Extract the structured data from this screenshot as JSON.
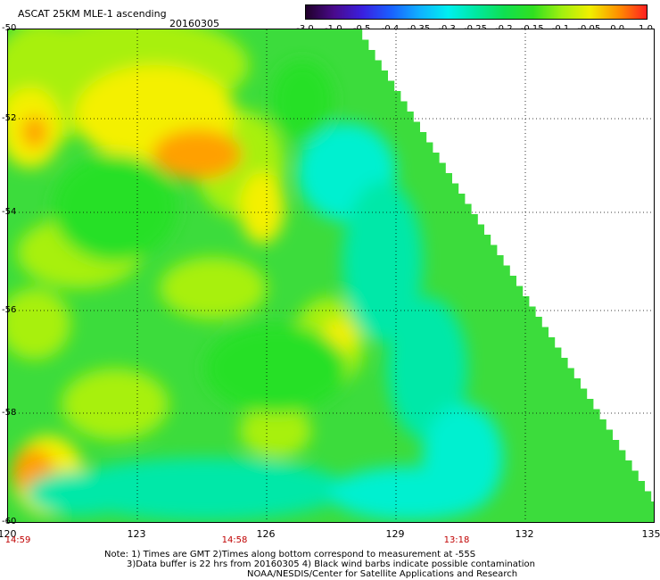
{
  "header": {
    "title": "ASCAT 25KM MLE-1 ascending",
    "date": "20160305"
  },
  "colorbar": {
    "labels": [
      "-3.0",
      "-1.0",
      "-0.5",
      "-0.4",
      "-0.35",
      "-0.3",
      "-0.25",
      "-0.2",
      "-0.15",
      "-0.1",
      "-0.05",
      "0.0",
      "1.0"
    ],
    "colors": [
      "#20002a",
      "#4a0a8c",
      "#3a20e0",
      "#1a60ff",
      "#10b0ff",
      "#00f0f0",
      "#00e8a0",
      "#10e050",
      "#30e020",
      "#a0f010",
      "#f0f000",
      "#ff9000",
      "#ff2020"
    ]
  },
  "map": {
    "lat_labels": [
      "-50",
      "-52",
      "-54",
      "-56",
      "-58",
      "-60"
    ],
    "lon_labels": [
      "120",
      "123",
      "126",
      "129",
      "132",
      "135"
    ],
    "lon_range": [
      120,
      135
    ],
    "lat_range": [
      -50,
      -60
    ],
    "swath_colors": {
      "background": "#3cdc3c",
      "yellowgreen": "#a8f010",
      "yellow": "#f4f000",
      "orange": "#ffa000",
      "cyan": "#00f0d0",
      "teal": "#00e8a8",
      "green": "#28e028"
    }
  },
  "times": [
    {
      "label": "14:59",
      "lon": 120
    },
    {
      "label": "14:58",
      "lon": 125.2
    },
    {
      "label": "13:18",
      "lon": 131
    }
  ],
  "notes": {
    "line1": "Note: 1) Times are GMT 2)Times along bottom correspond to measurement at -55S",
    "line2": "3)Data buffer is 22 hrs from 20160305 4) Black wind barbs indicate possible contamination",
    "line3": "NOAA/NESDIS/Center for Satellite Applications and Research"
  }
}
